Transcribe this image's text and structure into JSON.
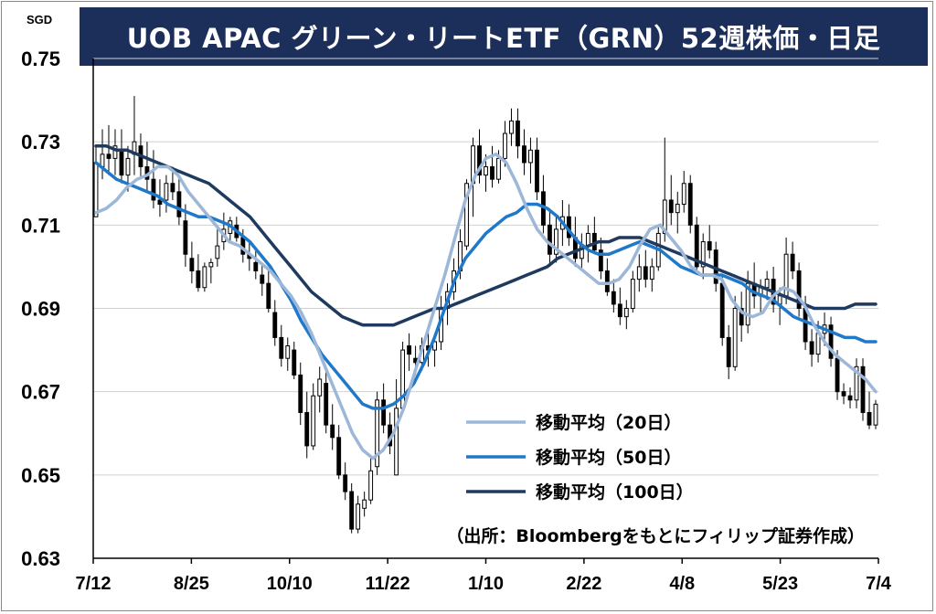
{
  "title": "UOB APAC グリーン・リートETF（GRN）52週株価・日足",
  "unit": "SGD",
  "source": "（出所：Bloombergをもとにフィリップ証券作成）",
  "colors": {
    "title_bg": "#1c2e5a",
    "ma20": "#9db7d9",
    "ma50": "#1f78c8",
    "ma100": "#1f3a5f",
    "candle": "#000000",
    "grid": "#d0d0d0"
  },
  "chart_data": {
    "type": "candlestick",
    "ylim": [
      0.63,
      0.75
    ],
    "yticks": [
      "0.63",
      "0.65",
      "0.67",
      "0.69",
      "0.71",
      "0.73",
      "0.75"
    ],
    "x_ticks": [
      "7/12",
      "8/25",
      "10/10",
      "11/22",
      "1/10",
      "2/22",
      "4/8",
      "5/23",
      "7/4"
    ],
    "grid": "horizontal",
    "legend": [
      {
        "label": "移動平均（20日）",
        "color_key": "ma20"
      },
      {
        "label": "移動平均（50日）",
        "color_key": "ma50"
      },
      {
        "label": "移動平均（100日）",
        "color_key": "ma100"
      }
    ],
    "legend_position": "bottom-right",
    "ohlc": [
      [
        0.712,
        0.729,
        0.712,
        0.725
      ],
      [
        0.724,
        0.733,
        0.721,
        0.727
      ],
      [
        0.727,
        0.734,
        0.722,
        0.726
      ],
      [
        0.726,
        0.733,
        0.722,
        0.729
      ],
      [
        0.728,
        0.733,
        0.72,
        0.722
      ],
      [
        0.722,
        0.729,
        0.718,
        0.726
      ],
      [
        0.727,
        0.741,
        0.722,
        0.73
      ],
      [
        0.729,
        0.732,
        0.721,
        0.724
      ],
      [
        0.724,
        0.73,
        0.718,
        0.721
      ],
      [
        0.721,
        0.728,
        0.714,
        0.716
      ],
      [
        0.716,
        0.721,
        0.712,
        0.715
      ],
      [
        0.716,
        0.722,
        0.713,
        0.72
      ],
      [
        0.72,
        0.724,
        0.716,
        0.718
      ],
      [
        0.718,
        0.722,
        0.71,
        0.712
      ],
      [
        0.711,
        0.715,
        0.7,
        0.703
      ],
      [
        0.702,
        0.706,
        0.696,
        0.699
      ],
      [
        0.699,
        0.703,
        0.694,
        0.695
      ],
      [
        0.695,
        0.701,
        0.694,
        0.7
      ],
      [
        0.7,
        0.702,
        0.696,
        0.701
      ],
      [
        0.702,
        0.71,
        0.7,
        0.705
      ],
      [
        0.706,
        0.713,
        0.704,
        0.709
      ],
      [
        0.708,
        0.712,
        0.706,
        0.711
      ],
      [
        0.71,
        0.712,
        0.706,
        0.707
      ],
      [
        0.707,
        0.709,
        0.701,
        0.703
      ],
      [
        0.703,
        0.706,
        0.699,
        0.702
      ],
      [
        0.701,
        0.704,
        0.697,
        0.699
      ],
      [
        0.698,
        0.701,
        0.693,
        0.696
      ],
      [
        0.696,
        0.699,
        0.689,
        0.69
      ],
      [
        0.689,
        0.692,
        0.681,
        0.683
      ],
      [
        0.683,
        0.686,
        0.676,
        0.678
      ],
      [
        0.678,
        0.683,
        0.675,
        0.681
      ],
      [
        0.68,
        0.682,
        0.673,
        0.674
      ],
      [
        0.674,
        0.677,
        0.662,
        0.665
      ],
      [
        0.665,
        0.67,
        0.654,
        0.657
      ],
      [
        0.657,
        0.672,
        0.656,
        0.669
      ],
      [
        0.669,
        0.676,
        0.665,
        0.673
      ],
      [
        0.672,
        0.675,
        0.66,
        0.662
      ],
      [
        0.662,
        0.667,
        0.656,
        0.659
      ],
      [
        0.659,
        0.662,
        0.649,
        0.65
      ],
      [
        0.65,
        0.653,
        0.644,
        0.646
      ],
      [
        0.646,
        0.648,
        0.636,
        0.637
      ],
      [
        0.637,
        0.645,
        0.636,
        0.643
      ],
      [
        0.642,
        0.646,
        0.64,
        0.644
      ],
      [
        0.644,
        0.654,
        0.643,
        0.651
      ],
      [
        0.652,
        0.67,
        0.65,
        0.668
      ],
      [
        0.668,
        0.672,
        0.66,
        0.662
      ],
      [
        0.662,
        0.665,
        0.655,
        0.657
      ],
      [
        0.65,
        0.673,
        0.65,
        0.666
      ],
      [
        0.666,
        0.682,
        0.665,
        0.68
      ],
      [
        0.681,
        0.684,
        0.675,
        0.679
      ],
      [
        0.678,
        0.681,
        0.674,
        0.677
      ],
      [
        0.677,
        0.683,
        0.675,
        0.681
      ],
      [
        0.681,
        0.685,
        0.676,
        0.68
      ],
      [
        0.68,
        0.684,
        0.676,
        0.682
      ],
      [
        0.682,
        0.693,
        0.68,
        0.69
      ],
      [
        0.69,
        0.696,
        0.686,
        0.694
      ],
      [
        0.694,
        0.702,
        0.692,
        0.699
      ],
      [
        0.699,
        0.709,
        0.697,
        0.706
      ],
      [
        0.705,
        0.721,
        0.704,
        0.72
      ],
      [
        0.72,
        0.731,
        0.712,
        0.729
      ],
      [
        0.729,
        0.733,
        0.72,
        0.722
      ],
      [
        0.722,
        0.727,
        0.718,
        0.724
      ],
      [
        0.724,
        0.729,
        0.719,
        0.721
      ],
      [
        0.721,
        0.728,
        0.72,
        0.726
      ],
      [
        0.726,
        0.735,
        0.724,
        0.732
      ],
      [
        0.732,
        0.738,
        0.729,
        0.735
      ],
      [
        0.735,
        0.738,
        0.726,
        0.729
      ],
      [
        0.729,
        0.733,
        0.722,
        0.725
      ],
      [
        0.725,
        0.731,
        0.72,
        0.728
      ],
      [
        0.728,
        0.731,
        0.716,
        0.718
      ],
      [
        0.718,
        0.722,
        0.708,
        0.71
      ],
      [
        0.71,
        0.714,
        0.7,
        0.703
      ],
      [
        0.703,
        0.712,
        0.701,
        0.709
      ],
      [
        0.709,
        0.716,
        0.705,
        0.712
      ],
      [
        0.712,
        0.715,
        0.705,
        0.707
      ],
      [
        0.707,
        0.712,
        0.7,
        0.702
      ],
      [
        0.702,
        0.708,
        0.699,
        0.705
      ],
      [
        0.705,
        0.71,
        0.701,
        0.708
      ],
      [
        0.708,
        0.712,
        0.703,
        0.704
      ],
      [
        0.704,
        0.707,
        0.697,
        0.699
      ],
      [
        0.699,
        0.702,
        0.693,
        0.694
      ],
      [
        0.694,
        0.697,
        0.689,
        0.691
      ],
      [
        0.691,
        0.695,
        0.686,
        0.688
      ],
      [
        0.688,
        0.692,
        0.685,
        0.69
      ],
      [
        0.69,
        0.699,
        0.689,
        0.697
      ],
      [
        0.697,
        0.703,
        0.694,
        0.7
      ],
      [
        0.7,
        0.704,
        0.695,
        0.697
      ],
      [
        0.697,
        0.702,
        0.694,
        0.7
      ],
      [
        0.7,
        0.71,
        0.699,
        0.708
      ],
      [
        0.708,
        0.731,
        0.706,
        0.716
      ],
      [
        0.716,
        0.722,
        0.71,
        0.713
      ],
      [
        0.713,
        0.718,
        0.708,
        0.715
      ],
      [
        0.715,
        0.723,
        0.713,
        0.72
      ],
      [
        0.72,
        0.722,
        0.708,
        0.71
      ],
      [
        0.71,
        0.712,
        0.698,
        0.7
      ],
      [
        0.7,
        0.708,
        0.697,
        0.706
      ],
      [
        0.706,
        0.71,
        0.702,
        0.704
      ],
      [
        0.704,
        0.706,
        0.694,
        0.696
      ],
      [
        0.696,
        0.698,
        0.681,
        0.683
      ],
      [
        0.683,
        0.686,
        0.673,
        0.676
      ],
      [
        0.676,
        0.693,
        0.675,
        0.69
      ],
      [
        0.69,
        0.694,
        0.682,
        0.686
      ],
      [
        0.686,
        0.699,
        0.684,
        0.696
      ],
      [
        0.696,
        0.701,
        0.69,
        0.693
      ],
      [
        0.693,
        0.697,
        0.689,
        0.695
      ],
      [
        0.695,
        0.699,
        0.692,
        0.697
      ],
      [
        0.697,
        0.7,
        0.689,
        0.691
      ],
      [
        0.691,
        0.695,
        0.686,
        0.693
      ],
      [
        0.693,
        0.707,
        0.691,
        0.703
      ],
      [
        0.703,
        0.706,
        0.697,
        0.699
      ],
      [
        0.699,
        0.701,
        0.688,
        0.69
      ],
      [
        0.69,
        0.693,
        0.68,
        0.682
      ],
      [
        0.682,
        0.685,
        0.676,
        0.679
      ],
      [
        0.679,
        0.687,
        0.677,
        0.684
      ],
      [
        0.684,
        0.689,
        0.681,
        0.686
      ],
      [
        0.686,
        0.688,
        0.676,
        0.678
      ],
      [
        0.678,
        0.68,
        0.668,
        0.67
      ],
      [
        0.67,
        0.672,
        0.667,
        0.669
      ],
      [
        0.669,
        0.671,
        0.666,
        0.668
      ],
      [
        0.668,
        0.678,
        0.666,
        0.676
      ],
      [
        0.676,
        0.678,
        0.663,
        0.665
      ],
      [
        0.665,
        0.67,
        0.661,
        0.662
      ],
      [
        0.662,
        0.668,
        0.661,
        0.667
      ]
    ],
    "ma20": [
      0.713,
      0.714,
      0.716,
      0.719,
      0.721,
      0.722,
      0.724,
      0.724,
      0.722,
      0.718,
      0.715,
      0.712,
      0.709,
      0.706,
      0.705,
      0.703,
      0.701,
      0.699,
      0.696,
      0.693,
      0.689,
      0.684,
      0.678,
      0.672,
      0.666,
      0.66,
      0.656,
      0.654,
      0.656,
      0.66,
      0.666,
      0.674,
      0.682,
      0.69,
      0.698,
      0.707,
      0.716,
      0.722,
      0.726,
      0.727,
      0.725,
      0.72,
      0.714,
      0.709,
      0.706,
      0.704,
      0.702,
      0.7,
      0.698,
      0.696,
      0.696,
      0.697,
      0.7,
      0.705,
      0.709,
      0.71,
      0.707,
      0.704,
      0.7,
      0.698,
      0.698,
      0.697,
      0.692,
      0.689,
      0.688,
      0.689,
      0.693,
      0.695,
      0.694,
      0.691,
      0.686,
      0.682,
      0.679,
      0.677,
      0.675,
      0.673,
      0.67
    ],
    "ma50": [
      0.725,
      0.723,
      0.721,
      0.72,
      0.719,
      0.718,
      0.717,
      0.715,
      0.714,
      0.713,
      0.712,
      0.712,
      0.711,
      0.71,
      0.708,
      0.706,
      0.703,
      0.7,
      0.696,
      0.692,
      0.687,
      0.683,
      0.679,
      0.676,
      0.673,
      0.67,
      0.667,
      0.666,
      0.666,
      0.667,
      0.669,
      0.672,
      0.677,
      0.683,
      0.69,
      0.697,
      0.702,
      0.705,
      0.708,
      0.71,
      0.712,
      0.713,
      0.715,
      0.715,
      0.714,
      0.712,
      0.709,
      0.706,
      0.704,
      0.703,
      0.703,
      0.704,
      0.705,
      0.706,
      0.705,
      0.704,
      0.702,
      0.7,
      0.699,
      0.698,
      0.698,
      0.698,
      0.697,
      0.696,
      0.694,
      0.693,
      0.692,
      0.69,
      0.688,
      0.687,
      0.686,
      0.685,
      0.684,
      0.683,
      0.683,
      0.682,
      0.682
    ],
    "ma100": [
      0.729,
      0.729,
      0.728,
      0.728,
      0.727,
      0.726,
      0.725,
      0.724,
      0.723,
      0.722,
      0.721,
      0.72,
      0.718,
      0.716,
      0.714,
      0.712,
      0.709,
      0.706,
      0.703,
      0.7,
      0.697,
      0.694,
      0.692,
      0.69,
      0.688,
      0.687,
      0.686,
      0.686,
      0.686,
      0.686,
      0.687,
      0.688,
      0.689,
      0.69,
      0.69,
      0.691,
      0.692,
      0.693,
      0.694,
      0.695,
      0.696,
      0.697,
      0.698,
      0.699,
      0.7,
      0.702,
      0.703,
      0.704,
      0.705,
      0.706,
      0.706,
      0.707,
      0.707,
      0.707,
      0.706,
      0.705,
      0.704,
      0.703,
      0.702,
      0.701,
      0.7,
      0.699,
      0.698,
      0.697,
      0.696,
      0.695,
      0.694,
      0.693,
      0.692,
      0.691,
      0.69,
      0.69,
      0.69,
      0.69,
      0.691,
      0.691,
      0.691
    ]
  }
}
